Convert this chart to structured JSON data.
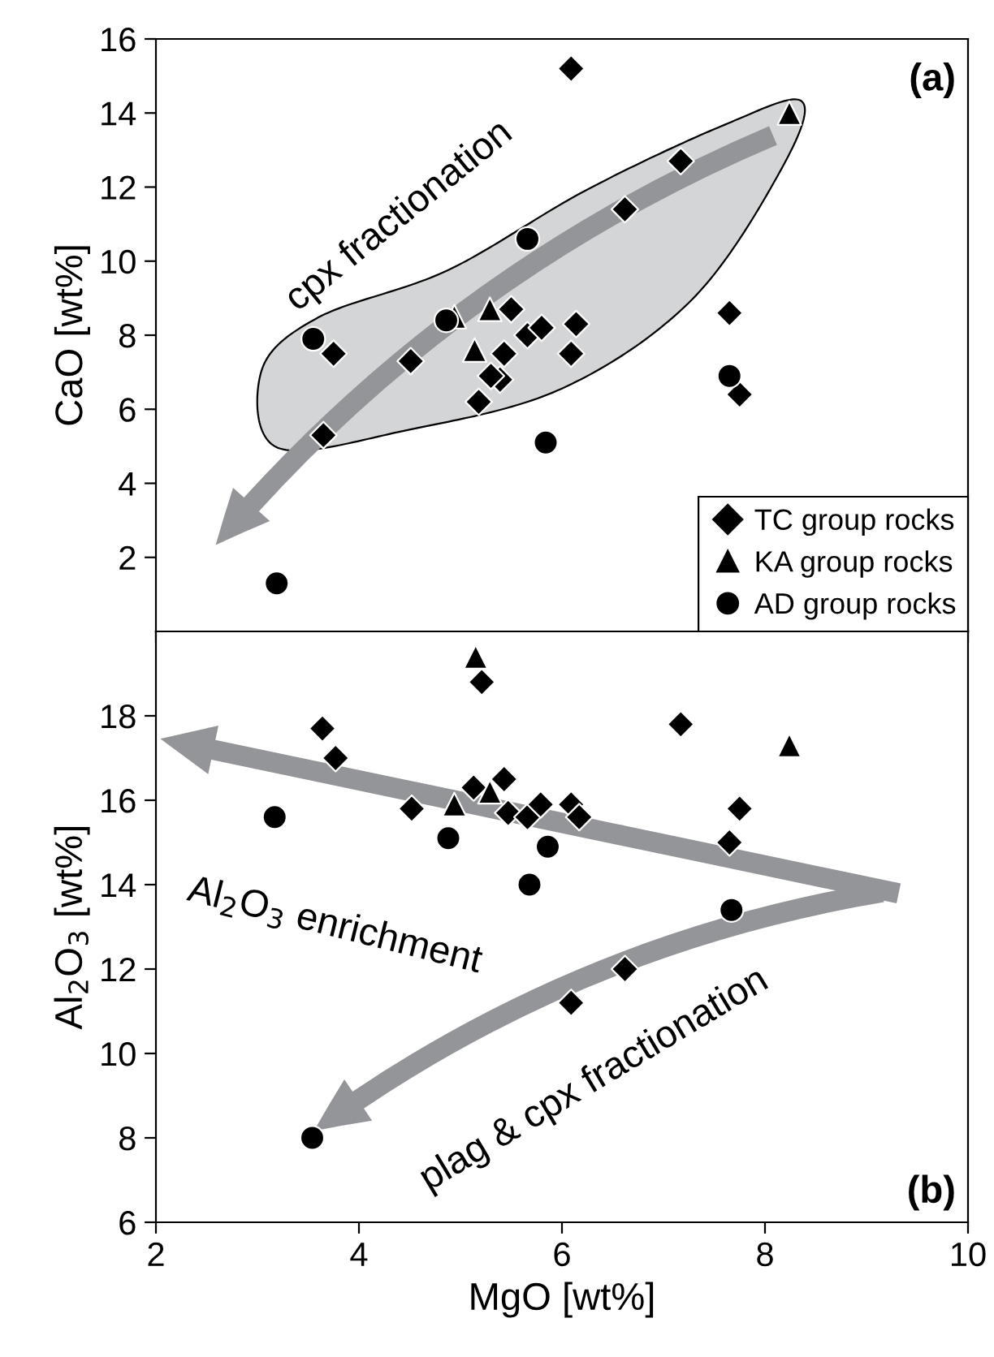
{
  "chart_data": [
    {
      "type": "scatter",
      "ylabel": "CaO [wt%]",
      "xlim": [
        2,
        10
      ],
      "xticks": [
        2,
        4,
        6,
        8,
        10
      ],
      "ylim": [
        0,
        16
      ],
      "yticks": [
        2,
        4,
        6,
        8,
        10,
        12,
        14,
        16
      ],
      "tick_labels": "y",
      "grid": false,
      "legend": "bottom right",
      "annotations": [
        "(a)",
        "cpx fractionation"
      ],
      "series": [
        {
          "name": "TC group rocks",
          "color": "#000000",
          "marker": "diamond",
          "x": [
            6.09,
            7.17,
            6.62,
            7.65,
            7.75,
            3.75,
            3.65,
            4.51,
            5.5,
            5.43,
            5.39,
            5.18,
            5.66,
            5.8,
            6.14,
            6.09,
            5.3
          ],
          "values": [
            15.2,
            12.7,
            11.4,
            8.6,
            6.4,
            7.5,
            5.3,
            7.3,
            8.7,
            7.5,
            6.8,
            6.2,
            8.0,
            8.2,
            8.3,
            7.5,
            6.9
          ]
        },
        {
          "name": "KA group rocks",
          "color": "#000000",
          "marker": "triangle",
          "x": [
            8.24,
            4.94,
            5.29,
            5.14
          ],
          "values": [
            14.0,
            8.5,
            8.7,
            7.6
          ]
        },
        {
          "name": "AD group rocks",
          "color": "#000000",
          "marker": "circle",
          "x": [
            5.66,
            3.55,
            4.86,
            5.84,
            7.65,
            3.19
          ],
          "values": [
            10.6,
            7.9,
            8.4,
            5.1,
            6.9,
            1.3
          ]
        }
      ]
    },
    {
      "type": "scatter",
      "xlabel": "MgO [wt%]",
      "ylabel": "Al$_{2}$O$_{3}$ [wt%]",
      "xlim": [
        2,
        10
      ],
      "xticks": [
        2,
        4,
        6,
        8,
        10
      ],
      "ylim": [
        6,
        20
      ],
      "yticks": [
        6,
        8,
        10,
        12,
        14,
        16,
        18
      ],
      "grid": false,
      "annotations": [
        "(b)",
        "Al$_{2}$O$_{3}$ enrichment",
        "plag & cpx fractionation"
      ],
      "series": [
        {
          "color": "#000000",
          "marker": "diamond",
          "x": [
            5.21,
            3.64,
            3.77,
            7.17,
            4.52,
            5.13,
            5.43,
            5.47,
            5.66,
            5.79,
            6.09,
            6.17,
            7.75,
            7.65,
            6.62,
            6.09
          ],
          "values": [
            18.8,
            17.7,
            17.0,
            17.8,
            15.8,
            16.3,
            16.5,
            15.7,
            15.6,
            15.9,
            15.9,
            15.6,
            15.8,
            15.0,
            12.0,
            11.2
          ]
        },
        {
          "color": "#000000",
          "marker": "triangle",
          "x": [
            5.15,
            8.24,
            4.94,
            5.29
          ],
          "values": [
            19.4,
            17.3,
            15.9,
            16.2
          ]
        },
        {
          "color": "#000000",
          "marker": "circle",
          "x": [
            3.17,
            4.88,
            5.86,
            5.68,
            7.67,
            3.54
          ],
          "values": [
            15.6,
            15.1,
            14.9,
            14.0,
            13.4,
            8.0
          ]
        }
      ]
    }
  ]
}
